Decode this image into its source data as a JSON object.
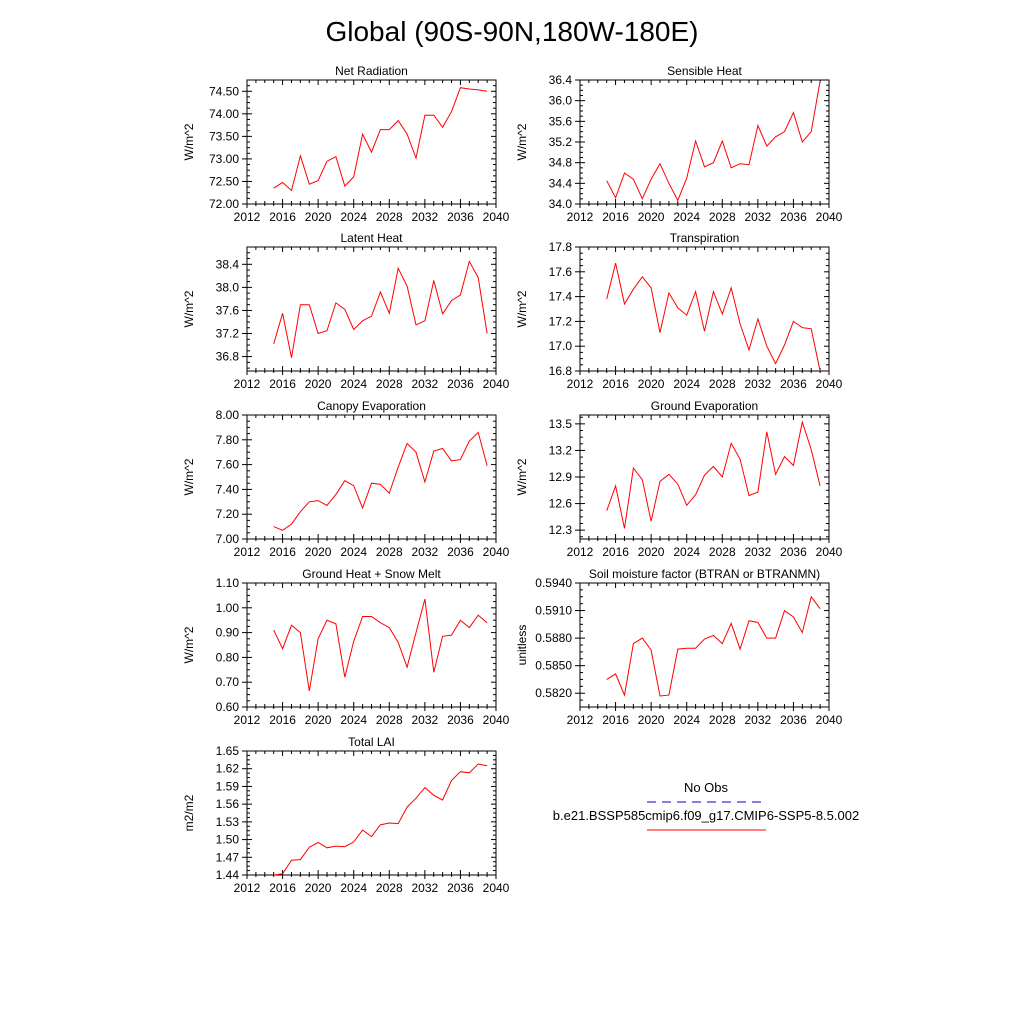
{
  "title": "Global (90S-90N,180W-180E)",
  "colors": {
    "model_line": "#ff0000",
    "obs_line": "#0000cc",
    "axis": "#000000"
  },
  "legend": {
    "obs_label": "No Obs",
    "model_label": "b.e21.BSSP585cmip6.f09_g17.CMIP6-SSP5-8.5.002"
  },
  "chart_data": [
    {
      "type": "line",
      "title": "Net Radiation",
      "ylabel": "W/m^2",
      "xlim": [
        2012,
        2040
      ],
      "ylim": [
        72.0,
        74.75
      ],
      "x_ticks": [
        2012,
        2016,
        2020,
        2024,
        2028,
        2032,
        2036,
        2040
      ],
      "y_ticks": [
        "72.00",
        "72.50",
        "73.00",
        "73.50",
        "74.00",
        "74.50"
      ],
      "x": [
        2015,
        2016,
        2017,
        2018,
        2019,
        2020,
        2021,
        2022,
        2023,
        2024,
        2025,
        2026,
        2027,
        2028,
        2029,
        2030,
        2031,
        2032,
        2033,
        2034,
        2035,
        2036,
        2037,
        2038,
        2039
      ],
      "values": [
        72.35,
        72.48,
        72.3,
        73.07,
        72.44,
        72.52,
        72.95,
        73.05,
        72.4,
        72.6,
        73.55,
        73.15,
        73.65,
        73.65,
        73.85,
        73.55,
        73.02,
        73.97,
        73.97,
        73.7,
        74.05,
        74.58,
        74.55,
        74.53,
        74.5
      ]
    },
    {
      "type": "line",
      "title": "Sensible Heat",
      "ylabel": "W/m^2",
      "xlim": [
        2012,
        2040
      ],
      "ylim": [
        34.0,
        36.4
      ],
      "x_ticks": [
        2012,
        2016,
        2020,
        2024,
        2028,
        2032,
        2036,
        2040
      ],
      "y_ticks": [
        "34.0",
        "34.4",
        "34.8",
        "35.2",
        "35.6",
        "36.0",
        "36.4"
      ],
      "x": [
        2015,
        2016,
        2017,
        2018,
        2019,
        2020,
        2021,
        2022,
        2023,
        2024,
        2025,
        2026,
        2027,
        2028,
        2029,
        2030,
        2031,
        2032,
        2033,
        2034,
        2035,
        2036,
        2037,
        2038,
        2039
      ],
      "values": [
        34.45,
        34.12,
        34.6,
        34.48,
        34.1,
        34.48,
        34.78,
        34.4,
        34.07,
        34.5,
        35.22,
        34.72,
        34.8,
        35.22,
        34.7,
        34.78,
        34.76,
        35.52,
        35.12,
        35.3,
        35.4,
        35.77,
        35.2,
        35.4,
        36.38
      ]
    },
    {
      "type": "line",
      "title": "Latent Heat",
      "ylabel": "W/m^2",
      "xlim": [
        2012,
        2040
      ],
      "ylim": [
        36.55,
        38.7
      ],
      "x_ticks": [
        2012,
        2016,
        2020,
        2024,
        2028,
        2032,
        2036,
        2040
      ],
      "y_ticks": [
        "36.8",
        "37.2",
        "37.6",
        "38.0",
        "38.4"
      ],
      "x": [
        2015,
        2016,
        2017,
        2018,
        2019,
        2020,
        2021,
        2022,
        2023,
        2024,
        2025,
        2026,
        2027,
        2028,
        2029,
        2030,
        2031,
        2032,
        2033,
        2034,
        2035,
        2036,
        2037,
        2038,
        2039
      ],
      "values": [
        37.02,
        37.55,
        36.78,
        37.7,
        37.7,
        37.2,
        37.25,
        37.73,
        37.62,
        37.27,
        37.42,
        37.5,
        37.92,
        37.55,
        38.33,
        38.02,
        37.35,
        37.42,
        38.12,
        37.54,
        37.77,
        37.87,
        38.45,
        38.17,
        37.2
      ]
    },
    {
      "type": "line",
      "title": "Transpiration",
      "ylabel": "W/m^2",
      "xlim": [
        2012,
        2040
      ],
      "ylim": [
        16.8,
        17.8
      ],
      "x_ticks": [
        2012,
        2016,
        2020,
        2024,
        2028,
        2032,
        2036,
        2040
      ],
      "y_ticks": [
        "16.8",
        "17.0",
        "17.2",
        "17.4",
        "17.6",
        "17.8"
      ],
      "x": [
        2015,
        2016,
        2017,
        2018,
        2019,
        2020,
        2021,
        2022,
        2023,
        2024,
        2025,
        2026,
        2027,
        2028,
        2029,
        2030,
        2031,
        2032,
        2033,
        2034,
        2035,
        2036,
        2037,
        2038,
        2039
      ],
      "values": [
        17.38,
        17.67,
        17.34,
        17.46,
        17.56,
        17.47,
        17.11,
        17.43,
        17.31,
        17.25,
        17.44,
        17.12,
        17.44,
        17.26,
        17.47,
        17.18,
        16.97,
        17.22,
        17.0,
        16.86,
        17.01,
        17.2,
        17.15,
        17.14,
        16.8
      ]
    },
    {
      "type": "line",
      "title": "Canopy Evaporation",
      "ylabel": "W/m^2",
      "xlim": [
        2012,
        2040
      ],
      "ylim": [
        7.0,
        8.0
      ],
      "x_ticks": [
        2012,
        2016,
        2020,
        2024,
        2028,
        2032,
        2036,
        2040
      ],
      "y_ticks": [
        "7.00",
        "7.20",
        "7.40",
        "7.60",
        "7.80",
        "8.00"
      ],
      "x": [
        2015,
        2016,
        2017,
        2018,
        2019,
        2020,
        2021,
        2022,
        2023,
        2024,
        2025,
        2026,
        2027,
        2028,
        2029,
        2030,
        2031,
        2032,
        2033,
        2034,
        2035,
        2036,
        2037,
        2038,
        2039
      ],
      "values": [
        7.1,
        7.07,
        7.12,
        7.22,
        7.3,
        7.31,
        7.27,
        7.36,
        7.47,
        7.43,
        7.25,
        7.45,
        7.44,
        7.37,
        7.58,
        7.77,
        7.7,
        7.46,
        7.71,
        7.73,
        7.63,
        7.64,
        7.79,
        7.86,
        7.59
      ]
    },
    {
      "type": "line",
      "title": "Ground Evaporation",
      "ylabel": "W/m^2",
      "xlim": [
        2012,
        2040
      ],
      "ylim": [
        12.2,
        13.6
      ],
      "x_ticks": [
        2012,
        2016,
        2020,
        2024,
        2028,
        2032,
        2036,
        2040
      ],
      "y_ticks": [
        "12.3",
        "12.6",
        "12.9",
        "13.2",
        "13.5"
      ],
      "x": [
        2015,
        2016,
        2017,
        2018,
        2019,
        2020,
        2021,
        2022,
        2023,
        2024,
        2025,
        2026,
        2027,
        2028,
        2029,
        2030,
        2031,
        2032,
        2033,
        2034,
        2035,
        2036,
        2037,
        2038,
        2039
      ],
      "values": [
        12.52,
        12.8,
        12.32,
        13.0,
        12.87,
        12.4,
        12.85,
        12.93,
        12.82,
        12.58,
        12.7,
        12.92,
        13.02,
        12.9,
        13.28,
        13.1,
        12.69,
        12.73,
        13.41,
        12.93,
        13.13,
        13.03,
        13.52,
        13.21,
        12.8
      ]
    },
    {
      "type": "line",
      "title": "Ground Heat + Snow Melt",
      "ylabel": "W/m^2",
      "xlim": [
        2012,
        2040
      ],
      "ylim": [
        0.6,
        1.1
      ],
      "x_ticks": [
        2012,
        2016,
        2020,
        2024,
        2028,
        2032,
        2036,
        2040
      ],
      "y_ticks": [
        "0.60",
        "0.70",
        "0.80",
        "0.90",
        "1.00",
        "1.10"
      ],
      "x": [
        2015,
        2016,
        2017,
        2018,
        2019,
        2020,
        2021,
        2022,
        2023,
        2024,
        2025,
        2026,
        2027,
        2028,
        2029,
        2030,
        2031,
        2032,
        2033,
        2034,
        2035,
        2036,
        2037,
        2038,
        2039
      ],
      "values": [
        0.91,
        0.835,
        0.93,
        0.9,
        0.665,
        0.875,
        0.95,
        0.935,
        0.72,
        0.865,
        0.965,
        0.965,
        0.94,
        0.92,
        0.86,
        0.76,
        0.9,
        1.035,
        0.74,
        0.885,
        0.89,
        0.95,
        0.92,
        0.97,
        0.94
      ]
    },
    {
      "type": "line",
      "title": "Soil moisture factor (BTRAN or BTRANMN)",
      "ylabel": "unitless",
      "xlim": [
        2012,
        2040
      ],
      "ylim": [
        0.5805,
        0.594
      ],
      "x_ticks": [
        2012,
        2016,
        2020,
        2024,
        2028,
        2032,
        2036,
        2040
      ],
      "y_ticks": [
        "0.5820",
        "0.5850",
        "0.5880",
        "0.5910",
        "0.5940"
      ],
      "x": [
        2015,
        2016,
        2017,
        2018,
        2019,
        2020,
        2021,
        2022,
        2023,
        2024,
        2025,
        2026,
        2027,
        2028,
        2029,
        2030,
        2031,
        2032,
        2033,
        2034,
        2035,
        2036,
        2037,
        2038,
        2039
      ],
      "values": [
        0.5835,
        0.5841,
        0.5818,
        0.5874,
        0.588,
        0.5867,
        0.5817,
        0.5818,
        0.5868,
        0.5869,
        0.5869,
        0.5879,
        0.5883,
        0.5874,
        0.5896,
        0.5868,
        0.5899,
        0.5897,
        0.588,
        0.588,
        0.591,
        0.5903,
        0.5886,
        0.5925,
        0.5912
      ]
    },
    {
      "type": "line",
      "title": "Total LAI",
      "ylabel": "m2/m2",
      "xlim": [
        2012,
        2040
      ],
      "ylim": [
        1.44,
        1.65
      ],
      "x_ticks": [
        2012,
        2016,
        2020,
        2024,
        2028,
        2032,
        2036,
        2040
      ],
      "y_ticks": [
        "1.44",
        "1.47",
        "1.50",
        "1.53",
        "1.56",
        "1.59",
        "1.62",
        "1.65"
      ],
      "x": [
        2015,
        2016,
        2017,
        2018,
        2019,
        2020,
        2021,
        2022,
        2023,
        2024,
        2025,
        2026,
        2027,
        2028,
        2029,
        2030,
        2031,
        2032,
        2033,
        2034,
        2035,
        2036,
        2037,
        2038,
        2039
      ],
      "values": [
        1.44,
        1.442,
        1.465,
        1.466,
        1.487,
        1.495,
        1.486,
        1.489,
        1.488,
        1.496,
        1.516,
        1.505,
        1.525,
        1.528,
        1.527,
        1.555,
        1.57,
        1.588,
        1.575,
        1.567,
        1.6,
        1.615,
        1.613,
        1.628,
        1.625
      ]
    }
  ]
}
